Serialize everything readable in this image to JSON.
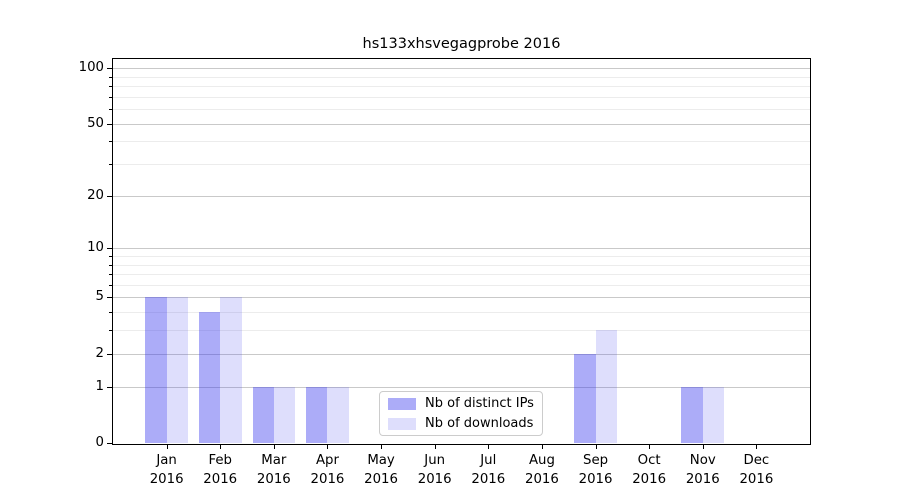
{
  "chart_data": {
    "type": "bar",
    "title": "hs133xhsvegagprobe 2016",
    "year": "2016",
    "categories": [
      "Jan",
      "Feb",
      "Mar",
      "Apr",
      "May",
      "Jun",
      "Jul",
      "Aug",
      "Sep",
      "Oct",
      "Nov",
      "Dec"
    ],
    "series": [
      {
        "name": "Nb of distinct IPs",
        "color": "#acacf2",
        "fill_rgba": "rgba(58,58,239,0.42)",
        "values": [
          5,
          4,
          1,
          1,
          0,
          0,
          0,
          0,
          2,
          0,
          1,
          0
        ]
      },
      {
        "name": "Nb of downloads",
        "color": "#dedefc",
        "fill_rgba": "rgba(58,58,239,0.17)",
        "values": [
          5,
          5,
          1,
          1,
          0,
          0,
          0,
          0,
          3,
          0,
          1,
          0
        ]
      }
    ],
    "y_axis": {
      "scale": "log1p",
      "major_ticks": [
        0,
        1,
        2,
        5,
        10,
        20,
        50,
        100
      ],
      "minor_ticks": [
        3,
        4,
        6,
        7,
        8,
        9,
        30,
        40,
        60,
        70,
        80,
        90
      ],
      "range": [
        0,
        112
      ]
    },
    "x_axis": {
      "tick_label_format": "month-over-year"
    },
    "grid": true,
    "legend_position": "lower-center",
    "colors": {
      "major_grid": "#c9c9c9",
      "minor_grid": "#ececec",
      "axis": "#000000"
    }
  }
}
